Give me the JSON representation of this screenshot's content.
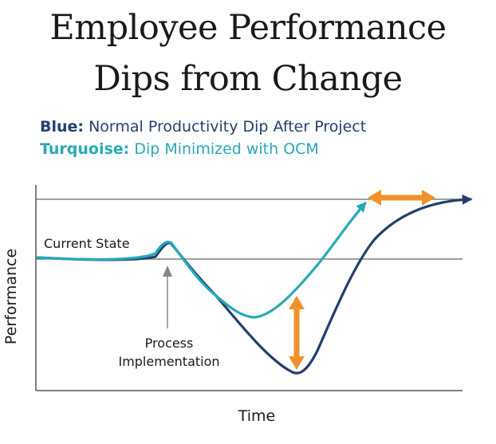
{
  "title": {
    "line1": "Employee Performance",
    "line2": "Dips from Change"
  },
  "legend": [
    {
      "key": "Blue:",
      "text": "Normal Productivity Dip After Project",
      "color": "#233e70"
    },
    {
      "key": "Turquoise:",
      "text": "Dip Minimized with OCM",
      "color": "#26a9b8"
    }
  ],
  "chart_data": {
    "type": "line",
    "xlabel": "Time",
    "ylabel": "Performance",
    "grid": false,
    "annotations": [
      {
        "text": "Current State"
      },
      {
        "text_lines": [
          "Process",
          "Implementation"
        ]
      }
    ],
    "series": [
      {
        "name": "Blue",
        "color": "#233e70"
      },
      {
        "name": "Turquoise",
        "color": "#26a9b8"
      }
    ],
    "arrow_color": "#f0922b",
    "axis_color": "#555555"
  }
}
